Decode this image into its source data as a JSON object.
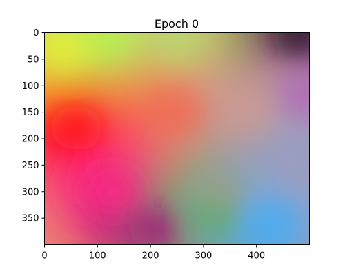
{
  "chart_data": {
    "type": "heatmap",
    "title": "Epoch 0",
    "xlabel": "",
    "ylabel": "",
    "xlim": [
      0,
      500
    ],
    "ylim": [
      400,
      0
    ],
    "y_inverted": true,
    "grid": false,
    "legend": "none",
    "x_ticks": [
      0,
      100,
      200,
      300,
      400
    ],
    "x_tick_labels": [
      "0",
      "100",
      "200",
      "300",
      "400"
    ],
    "y_ticks": [
      0,
      50,
      100,
      150,
      200,
      250,
      300,
      350
    ],
    "y_tick_labels": [
      "0",
      "50",
      "100",
      "150",
      "200",
      "250",
      "300",
      "350"
    ],
    "color_regions": [
      {
        "x": 40,
        "y": 30,
        "color": "#e8f03a"
      },
      {
        "x": 120,
        "y": 10,
        "color": "#b8ef4f"
      },
      {
        "x": 250,
        "y": 15,
        "color": "#b9d770"
      },
      {
        "x": 480,
        "y": 5,
        "color": "#2a1525"
      },
      {
        "x": 490,
        "y": 120,
        "color": "#b06ab8"
      },
      {
        "x": 60,
        "y": 180,
        "color": "#ff1010"
      },
      {
        "x": 250,
        "y": 150,
        "color": "#f36a4e"
      },
      {
        "x": 380,
        "y": 150,
        "color": "#cc9a8e"
      },
      {
        "x": 130,
        "y": 300,
        "color": "#ff2a85"
      },
      {
        "x": 210,
        "y": 370,
        "color": "#a40a7a"
      },
      {
        "x": 330,
        "y": 300,
        "color": "#a89b80"
      },
      {
        "x": 320,
        "y": 350,
        "color": "#6ca86a"
      },
      {
        "x": 430,
        "y": 360,
        "color": "#48adf1"
      },
      {
        "x": 480,
        "y": 230,
        "color": "#9a9ec0"
      }
    ]
  }
}
